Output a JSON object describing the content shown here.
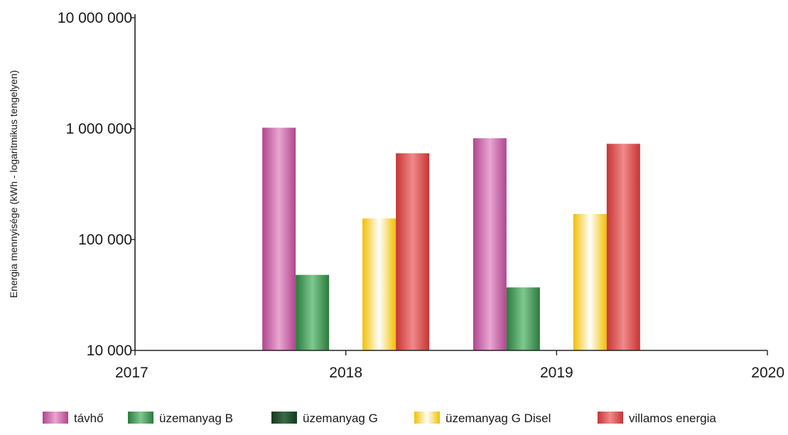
{
  "chart_data": {
    "type": "bar",
    "title": "",
    "xlabel": "",
    "ylabel": "Energia mennyisége (kWh - logaritmikus tengelyen)",
    "y_scale": "log",
    "ylim": [
      10000,
      10000000
    ],
    "y_ticks": [
      10000,
      100000,
      1000000,
      10000000
    ],
    "y_tick_labels": [
      "10 000",
      "100 000",
      "1 000 000",
      "10 000 000"
    ],
    "x_ticks": [
      "2017",
      "2018",
      "2019",
      "2020"
    ],
    "categories": [
      "2018",
      "2019"
    ],
    "legend_position": "bottom",
    "grid": false,
    "series": [
      {
        "name": "távhő",
        "color": "#c768a8",
        "values": [
          1020000,
          820000
        ]
      },
      {
        "name": "üzemanyag B",
        "color": "#3f9a55",
        "values": [
          48000,
          37000
        ]
      },
      {
        "name": "üzemanyag G",
        "color": "#1e4d2b",
        "values": [
          null,
          null
        ]
      },
      {
        "name": "üzemanyag G Disel",
        "color": "#f2cf2a",
        "values": [
          155000,
          170000
        ]
      },
      {
        "name": "villamos energia",
        "color": "#d94747",
        "values": [
          600000,
          730000
        ]
      }
    ]
  }
}
